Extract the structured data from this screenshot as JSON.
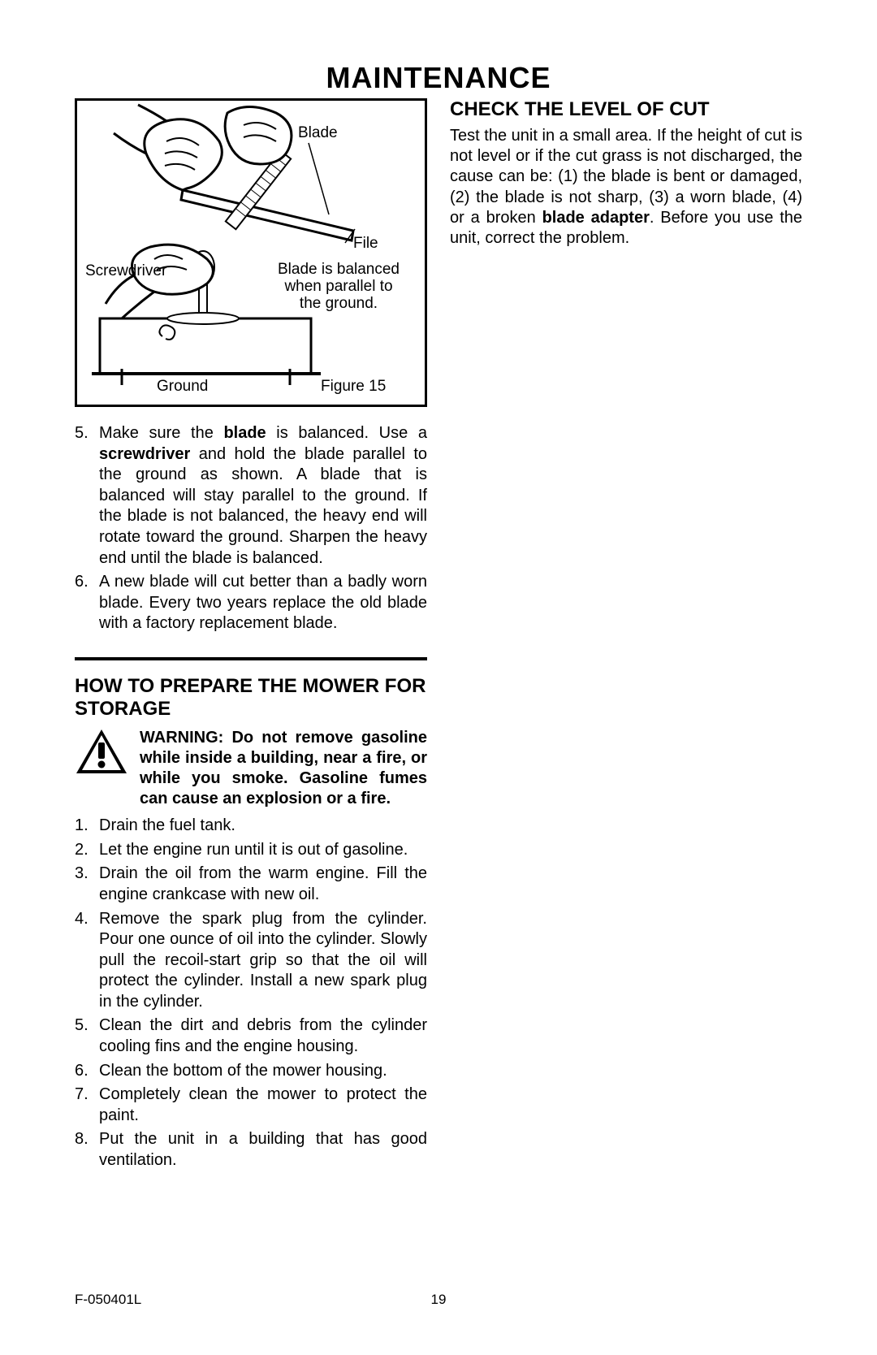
{
  "title": "MAINTENANCE",
  "figure": {
    "label_blade": "Blade",
    "label_file": "File",
    "label_screwdriver": "Screwdriver",
    "label_balanced_l1": "Blade is balanced",
    "label_balanced_l2": "when parallel to",
    "label_balanced_l3": "the ground.",
    "label_ground": "Ground",
    "caption": "Figure 15"
  },
  "left_list": [
    {
      "n": "5.",
      "html": "Make sure the <b>blade</b> is balanced. Use a <b>screwdriver</b> and hold the blade parallel to the ground as shown. A blade that is balanced will stay parallel to the ground. If the blade is not balanced, the heavy end will rotate toward the ground. Sharpen the heavy end until the blade is balanced."
    },
    {
      "n": "6.",
      "html": "A new blade will cut better than a badly worn blade. Every two years replace the old blade with a factory replacement blade."
    }
  ],
  "storage": {
    "heading": "HOW TO PREPARE THE MOWER FOR STORAGE",
    "warning": "WARNING: Do not remove gasoline while inside a building, near a fire, or while you smoke. Gasoline fumes can cause an explosion or a fire.",
    "steps": [
      {
        "n": "1.",
        "html": "Drain the fuel tank."
      },
      {
        "n": "2.",
        "html": "Let the engine run until it is out of gasoline."
      },
      {
        "n": "3.",
        "html": "Drain the oil from the warm engine. Fill the engine crankcase with new oil."
      },
      {
        "n": "4.",
        "html": "Remove the spark plug from the cylinder. Pour one ounce of oil into the cylinder. Slowly pull the recoil-start grip so that the oil will protect the cylinder. Install a new spark plug in the cylinder."
      },
      {
        "n": "5.",
        "html": "Clean the dirt and debris from the cylinder cooling fins and the engine housing."
      },
      {
        "n": "6.",
        "html": "Clean the bottom of the mower housing."
      },
      {
        "n": "7.",
        "html": "Completely clean the mower to protect the paint."
      },
      {
        "n": "8.",
        "html": "Put the unit in a building that has good ventilation."
      }
    ]
  },
  "right": {
    "heading": "CHECK THE LEVEL OF CUT",
    "body_html": "Test the unit in a small area. If the height of cut is not level or if the cut grass is not discharged, the cause can be: (1) the blade is bent or damaged, (2) the blade is not sharp, (3) a worn blade, (4) or a broken <b>blade adapter</b>. Before you use the unit, correct the problem."
  },
  "footer": {
    "doc": "F-050401L",
    "page": "19"
  },
  "colors": {
    "text": "#000000",
    "bg": "#ffffff"
  }
}
